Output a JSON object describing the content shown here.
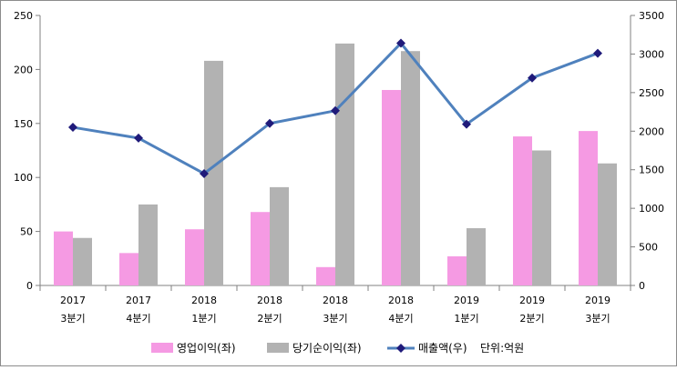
{
  "chart_data": {
    "type": "bar",
    "categories": [
      [
        "2017",
        "3분기"
      ],
      [
        "2017",
        "4분기"
      ],
      [
        "2018",
        "1분기"
      ],
      [
        "2018",
        "2분기"
      ],
      [
        "2018",
        "3분기"
      ],
      [
        "2018",
        "4분기"
      ],
      [
        "2019",
        "1분기"
      ],
      [
        "2019",
        "2분기"
      ],
      [
        "2019",
        "3분기"
      ]
    ],
    "series": [
      {
        "name": "영업이익(좌)",
        "kind": "bar",
        "axis": "left",
        "color": "#f59ae3",
        "values": [
          50,
          30,
          52,
          68,
          17,
          181,
          27,
          138,
          143
        ]
      },
      {
        "name": "당기순이익(좌)",
        "kind": "bar",
        "axis": "left",
        "color": "#b2b2b2",
        "values": [
          44,
          75,
          208,
          91,
          224,
          217,
          53,
          125,
          113
        ]
      },
      {
        "name": "매출액(우)",
        "kind": "line",
        "axis": "right",
        "color": "#4f81bd",
        "marker_color": "#1f1a7a",
        "values": [
          2050,
          1910,
          1450,
          2100,
          2265,
          3140,
          2090,
          2690,
          3010
        ]
      }
    ],
    "y_left": {
      "min": 0,
      "max": 250,
      "ticks": [
        "0",
        "50",
        "100",
        "150",
        "200",
        "250"
      ]
    },
    "y_right": {
      "min": 0,
      "max": 3500,
      "ticks": [
        "0",
        "500",
        "1000",
        "1500",
        "2000",
        "2500",
        "3000",
        "3500"
      ]
    },
    "unit_note": "단위:억원",
    "legend_position": "bottom",
    "grid": false
  }
}
